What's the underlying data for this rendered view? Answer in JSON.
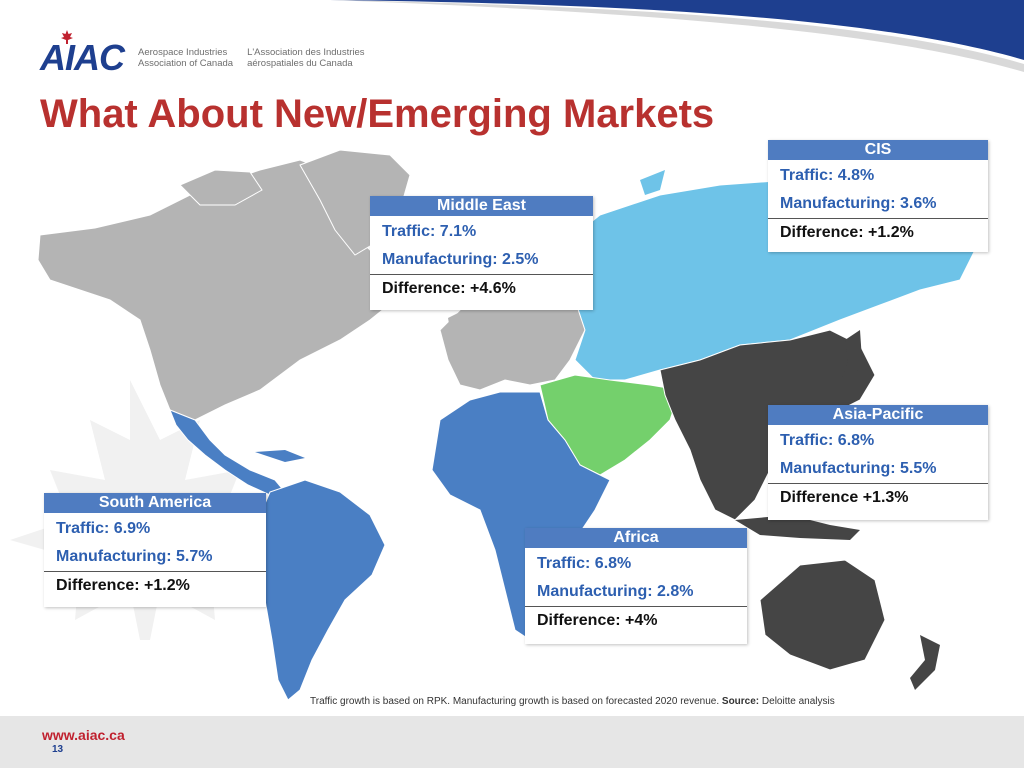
{
  "header": {
    "logo_mark": "AIAC",
    "logo_name_en": [
      "Aerospace Industries",
      "Association of Canada"
    ],
    "logo_name_fr": [
      "L'Association des Industries",
      "aérospatiales du Canada"
    ],
    "title": "What About New/Emerging Markets"
  },
  "colors": {
    "title": "#b8312f",
    "header_bar": "#1e3f8f",
    "box_header": "#4f7cc1",
    "value_text": "#2d5fb0",
    "cis": "#6ec3e8",
    "middle_east": "#74d06c",
    "asia_pacific": "#454545",
    "africa_south_america": "#4a7fc4",
    "other": "#b4b4b4"
  },
  "regions": {
    "cis": {
      "name": "CIS",
      "traffic": "Traffic: 4.8%",
      "manufacturing": "Manufacturing: 3.6%",
      "difference": "Difference: +1.2%"
    },
    "middle_east": {
      "name": "Middle East",
      "traffic": "Traffic: 7.1%",
      "manufacturing": "Manufacturing: 2.5%",
      "difference": "Difference: +4.6%"
    },
    "asia_pacific": {
      "name": "Asia-Pacific",
      "traffic": "Traffic: 6.8%",
      "manufacturing": "Manufacturing: 5.5%",
      "difference": "Difference +1.3%"
    },
    "south_america": {
      "name": "South America",
      "traffic": "Traffic: 6.9%",
      "manufacturing": "Manufacturing: 5.7%",
      "difference": "Difference: +1.2%"
    },
    "africa": {
      "name": "Africa",
      "traffic": "Traffic: 6.8%",
      "manufacturing": "Manufacturing: 2.8%",
      "difference": "Difference: +4%"
    }
  },
  "footnote": {
    "text": "Traffic growth is based on RPK. Manufacturing growth is based on forecasted 2020 revenue.",
    "source_label": "Source:",
    "source_value": "Deloitte analysis"
  },
  "footer": {
    "url": "www.aiac.ca",
    "page_number": "13"
  }
}
